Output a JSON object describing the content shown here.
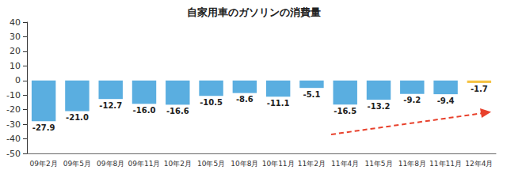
{
  "chart_data": {
    "type": "bar",
    "title": "自家用車のガソリンの消費量",
    "categories": [
      "09年2月",
      "09年5月",
      "09年8月",
      "09年11月",
      "10年2月",
      "10年5月",
      "10年8月",
      "10年11月",
      "11年2月",
      "11年4月",
      "11年5月",
      "11年8月",
      "11年11月",
      "12年4月"
    ],
    "values": [
      -27.9,
      -21.0,
      -12.7,
      -16.0,
      -16.6,
      -10.5,
      -8.6,
      -11.1,
      -5.1,
      -16.5,
      -13.2,
      -9.2,
      -9.4,
      -1.7
    ],
    "value_labels": [
      "-27.9",
      "-21.0",
      "-12.7",
      "-16.0",
      "-16.6",
      "-10.5",
      "-8.6",
      "-11.1",
      "-5.1",
      "-16.5",
      "-13.2",
      "-9.2",
      "-9.4",
      "-1.7"
    ],
    "colors": [
      "#5aaee0",
      "#5aaee0",
      "#5aaee0",
      "#5aaee0",
      "#5aaee0",
      "#5aaee0",
      "#5aaee0",
      "#5aaee0",
      "#5aaee0",
      "#5aaee0",
      "#5aaee0",
      "#5aaee0",
      "#5aaee0",
      "#f5c242"
    ],
    "ylim": [
      -50,
      40
    ],
    "yticks": [
      -50,
      -40,
      -30,
      -20,
      -10,
      0,
      10,
      20,
      30,
      40
    ],
    "grid": false,
    "data_labels": true
  }
}
